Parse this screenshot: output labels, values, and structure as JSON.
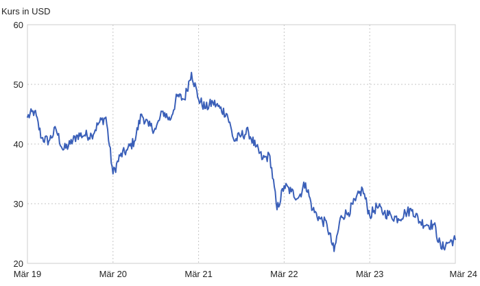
{
  "chart_data": {
    "type": "line",
    "title": "",
    "ylabel": "Kurs in USD",
    "xlabel": "",
    "ylim": [
      20,
      60
    ],
    "yticks": [
      20,
      30,
      40,
      50,
      60
    ],
    "xlim": [
      "2019-03",
      "2024-03"
    ],
    "xticks": [
      {
        "label": "Mär 19",
        "date": "2019-03"
      },
      {
        "label": "Mär 20",
        "date": "2020-03"
      },
      {
        "label": "Mär 21",
        "date": "2021-03"
      },
      {
        "label": "Mär 22",
        "date": "2022-03"
      },
      {
        "label": "Mär 23",
        "date": "2023-03"
      },
      {
        "label": "Mär 24",
        "date": "2024-03"
      }
    ],
    "grid": true,
    "legend": "none",
    "line_color": "#3a5fb8",
    "series": [
      {
        "x": [
          "2019-03",
          "2019-04",
          "2019-05",
          "2019-06",
          "2019-07",
          "2019-08",
          "2019-09",
          "2019-10",
          "2019-11",
          "2019-12",
          "2020-01",
          "2020-02",
          "2020-03",
          "2020-04",
          "2020-05",
          "2020-06",
          "2020-07",
          "2020-08",
          "2020-09",
          "2020-10",
          "2020-11",
          "2020-12",
          "2021-01",
          "2021-02",
          "2021-03",
          "2021-04",
          "2021-05",
          "2021-06",
          "2021-07",
          "2021-08",
          "2021-09",
          "2021-10",
          "2021-11",
          "2021-12",
          "2022-01",
          "2022-02",
          "2022-03",
          "2022-04",
          "2022-05",
          "2022-06",
          "2022-07",
          "2022-08",
          "2022-09",
          "2022-10",
          "2022-11",
          "2022-12",
          "2023-01",
          "2023-02",
          "2023-03",
          "2023-04",
          "2023-05",
          "2023-06",
          "2023-07",
          "2023-08",
          "2023-09",
          "2023-10",
          "2023-11",
          "2023-12",
          "2024-01",
          "2024-02",
          "2024-03"
        ],
        "values": [
          44.5,
          45.5,
          41.0,
          40.5,
          42.5,
          39.0,
          40.0,
          41.5,
          41.5,
          41.5,
          43.5,
          44.5,
          35.0,
          38.0,
          39.0,
          40.5,
          45.0,
          43.0,
          42.5,
          45.5,
          44.0,
          48.0,
          47.5,
          52.0,
          47.5,
          46.0,
          47.0,
          46.0,
          45.0,
          40.5,
          41.5,
          42.0,
          39.5,
          37.5,
          38.0,
          29.0,
          33.0,
          32.0,
          31.0,
          33.5,
          29.0,
          27.5,
          26.5,
          22.0,
          28.0,
          28.5,
          30.5,
          32.5,
          28.0,
          29.5,
          28.5,
          28.0,
          27.5,
          28.5,
          29.0,
          27.0,
          26.5,
          26.5,
          22.5,
          23.5,
          24.0
        ]
      }
    ]
  }
}
